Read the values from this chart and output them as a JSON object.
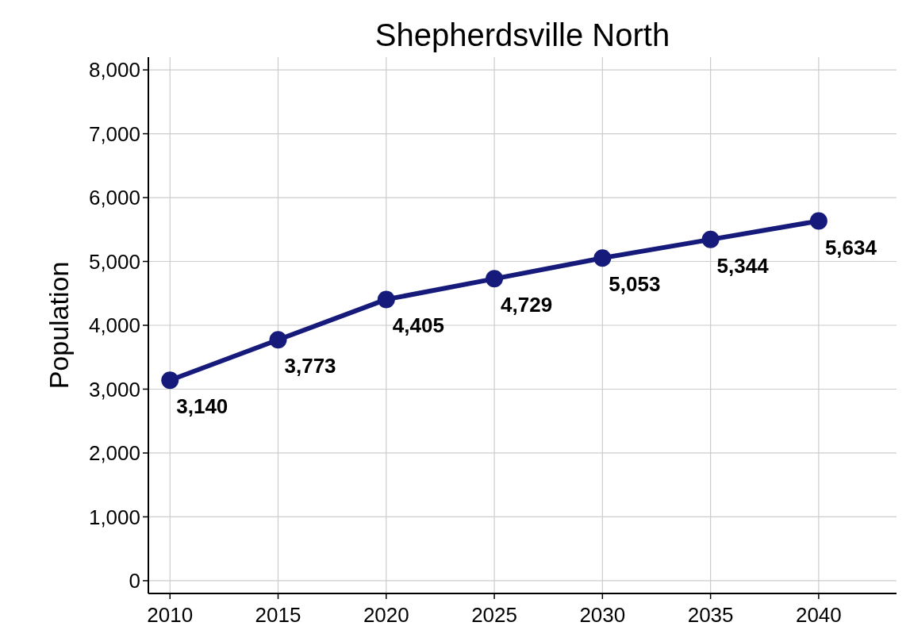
{
  "chart_data": {
    "type": "line",
    "title": "Shepherdsville North",
    "ylabel": "Population",
    "x": [
      2010,
      2015,
      2020,
      2025,
      2030,
      2035,
      2040
    ],
    "series": [
      {
        "color": "#151a7b",
        "values": [
          3140,
          3773,
          4405,
          4729,
          5053,
          5344,
          5634
        ],
        "value_labels": [
          "3,140",
          "3,773",
          "4,405",
          "4,729",
          "5,053",
          "5,344",
          "5,634"
        ]
      }
    ],
    "xlim": [
      2009,
      2043.6
    ],
    "xticks": [
      2010,
      2015,
      2020,
      2025,
      2030,
      2035,
      2040
    ],
    "ylim": [
      -200,
      8200
    ],
    "yticks": [
      {
        "value": 0,
        "label": "0"
      },
      {
        "value": 1000,
        "label": "1,000"
      },
      {
        "value": 2000,
        "label": "2,000"
      },
      {
        "value": 3000,
        "label": "3,000"
      },
      {
        "value": 4000,
        "label": "4,000"
      },
      {
        "value": 5000,
        "label": "5,000"
      },
      {
        "value": 6000,
        "label": "6,000"
      },
      {
        "value": 7000,
        "label": "7,000"
      },
      {
        "value": 8000,
        "label": "8,000"
      }
    ],
    "grid": true,
    "marker": "circle",
    "line_style": "solid"
  }
}
